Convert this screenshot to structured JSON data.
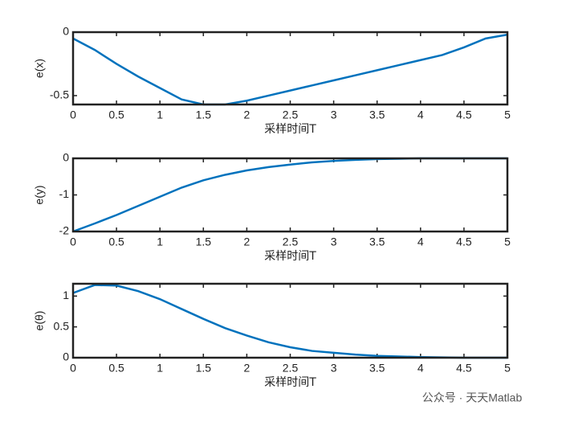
{
  "chart_data": [
    {
      "type": "line",
      "xlabel": "采样时间T",
      "ylabel": "e(x)",
      "x": [
        0,
        0.25,
        0.5,
        0.75,
        1,
        1.25,
        1.5,
        1.75,
        2,
        2.25,
        2.5,
        2.75,
        3,
        3.25,
        3.5,
        3.75,
        4,
        4.25,
        4.5,
        4.75,
        5
      ],
      "series": [
        {
          "color": "#0072BD",
          "values": [
            -0.05,
            -0.14,
            -0.25,
            -0.35,
            -0.44,
            -0.53,
            -0.57,
            -0.57,
            -0.54,
            -0.5,
            -0.46,
            -0.42,
            -0.38,
            -0.34,
            -0.3,
            -0.26,
            -0.22,
            -0.18,
            -0.12,
            -0.05,
            -0.02
          ]
        }
      ],
      "xlim": [
        0,
        5
      ],
      "xticks": [
        0,
        0.5,
        1,
        1.5,
        2,
        2.5,
        3,
        3.5,
        4,
        4.5,
        5
      ],
      "ylim": [
        -0.57,
        0
      ],
      "yticks": [
        -0.5,
        0
      ]
    },
    {
      "type": "line",
      "xlabel": "采样时间T",
      "ylabel": "e(y)",
      "x": [
        0,
        0.25,
        0.5,
        0.75,
        1,
        1.25,
        1.5,
        1.75,
        2,
        2.25,
        2.5,
        2.75,
        3,
        3.25,
        3.5,
        3.75,
        4,
        4.25,
        4.5,
        4.75,
        5
      ],
      "series": [
        {
          "color": "#0072BD",
          "values": [
            -2,
            -1.78,
            -1.55,
            -1.3,
            -1.05,
            -0.8,
            -0.6,
            -0.45,
            -0.33,
            -0.24,
            -0.17,
            -0.11,
            -0.07,
            -0.04,
            -0.02,
            -0.01,
            0,
            0,
            0,
            0,
            0
          ]
        }
      ],
      "xlim": [
        0,
        5
      ],
      "xticks": [
        0,
        0.5,
        1,
        1.5,
        2,
        2.5,
        3,
        3.5,
        4,
        4.5,
        5
      ],
      "ylim": [
        -2,
        0
      ],
      "yticks": [
        -2,
        -1,
        0
      ]
    },
    {
      "type": "line",
      "xlabel": "采样时间T",
      "ylabel": "e(θ)",
      "x": [
        0,
        0.25,
        0.5,
        0.75,
        1,
        1.25,
        1.5,
        1.75,
        2,
        2.25,
        2.5,
        2.75,
        3,
        3.25,
        3.5,
        3.75,
        4,
        4.25,
        4.5,
        4.75,
        5
      ],
      "series": [
        {
          "color": "#0072BD",
          "values": [
            1.05,
            1.18,
            1.17,
            1.08,
            0.95,
            0.79,
            0.63,
            0.48,
            0.36,
            0.25,
            0.17,
            0.11,
            0.08,
            0.05,
            0.03,
            0.02,
            0.01,
            0.005,
            0,
            0,
            0
          ]
        }
      ],
      "xlim": [
        0,
        5
      ],
      "xticks": [
        0,
        0.5,
        1,
        1.5,
        2,
        2.5,
        3,
        3.5,
        4,
        4.5,
        5
      ],
      "ylim": [
        0,
        1.2
      ],
      "yticks": [
        0,
        0.5,
        1
      ]
    }
  ],
  "watermark": "公众号 · 天天Matlab"
}
